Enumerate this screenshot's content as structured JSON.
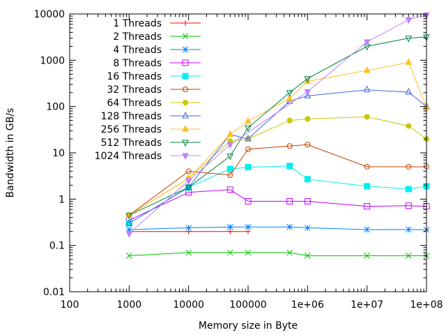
{
  "chart_data": {
    "type": "line",
    "title": "",
    "xlabel": "Memory size in Byte",
    "ylabel": "Bandwidth in GB/s",
    "x_scale": "log",
    "y_scale": "log",
    "xlim": [
      100,
      100000000
    ],
    "ylim": [
      0.01,
      10000
    ],
    "x_ticks": [
      {
        "value": 100,
        "label": "100"
      },
      {
        "value": 1000,
        "label": "1000"
      },
      {
        "value": 10000,
        "label": "10000"
      },
      {
        "value": 100000,
        "label": "100000"
      },
      {
        "value": 1000000,
        "label": "1e+06"
      },
      {
        "value": 10000000,
        "label": "1e+07"
      },
      {
        "value": 100000000,
        "label": "1e+08"
      }
    ],
    "y_ticks": [
      {
        "value": 0.01,
        "label": "0.01"
      },
      {
        "value": 0.1,
        "label": "0.1"
      },
      {
        "value": 1,
        "label": "1"
      },
      {
        "value": 10,
        "label": "10"
      },
      {
        "value": 100,
        "label": "100"
      },
      {
        "value": 1000,
        "label": "1000"
      },
      {
        "value": 10000,
        "label": "10000"
      }
    ],
    "grid": false,
    "legend_position": "top-left",
    "series": [
      {
        "name": "1 Threads",
        "color": "#ff0000",
        "marker": "plus",
        "x": [
          1000,
          10000,
          50000,
          100000
        ],
        "y": [
          0.2,
          0.2,
          0.2,
          0.2
        ]
      },
      {
        "name": "2 Threads",
        "color": "#00c000",
        "marker": "cross",
        "x": [
          1000,
          10000,
          50000,
          100000,
          500000,
          1000000,
          10000000,
          50000000,
          100000000
        ],
        "y": [
          0.06,
          0.07,
          0.07,
          0.07,
          0.07,
          0.06,
          0.06,
          0.06,
          0.06
        ]
      },
      {
        "name": "4 Threads",
        "color": "#0080ff",
        "marker": "star",
        "x": [
          1000,
          10000,
          50000,
          100000,
          500000,
          1000000,
          10000000,
          50000000,
          100000000
        ],
        "y": [
          0.22,
          0.24,
          0.25,
          0.25,
          0.25,
          0.24,
          0.22,
          0.22,
          0.22
        ]
      },
      {
        "name": "8 Threads",
        "color": "#c000ff",
        "marker": "box",
        "x": [
          1000,
          10000,
          50000,
          100000,
          500000,
          1000000,
          10000000,
          50000000,
          100000000
        ],
        "y": [
          0.35,
          1.4,
          1.6,
          0.9,
          0.9,
          0.9,
          0.7,
          0.72,
          0.7
        ]
      },
      {
        "name": "16 Threads",
        "color": "#00eeee",
        "marker": "fbox",
        "x": [
          1000,
          10000,
          50000,
          100000,
          500000,
          1000000,
          10000000,
          50000000,
          100000000
        ],
        "y": [
          0.3,
          1.8,
          4.5,
          4.9,
          5.2,
          2.7,
          1.9,
          1.65,
          1.9
        ]
      },
      {
        "name": "32 Threads",
        "color": "#c04000",
        "marker": "circle",
        "x": [
          1000,
          10000,
          50000,
          100000,
          500000,
          1000000,
          10000000,
          50000000,
          100000000
        ],
        "y": [
          0.45,
          4.0,
          3.3,
          12,
          14,
          15,
          5,
          5,
          5
        ]
      },
      {
        "name": "64 Threads",
        "color": "#c8c800",
        "marker": "fcircle",
        "x": [
          1000,
          10000,
          50000,
          100000,
          500000,
          1000000,
          10000000,
          50000000,
          100000000
        ],
        "y": [
          0.45,
          2.8,
          18,
          20,
          50,
          54,
          60,
          38,
          20
        ]
      },
      {
        "name": "128 Threads",
        "color": "#4169e1",
        "marker": "triangle",
        "x": [
          1000,
          10000,
          50000,
          100000,
          500000,
          1000000,
          10000000,
          50000000,
          100000000
        ],
        "y": [
          0.3,
          1.8,
          25,
          20,
          130,
          170,
          230,
          205,
          100
        ]
      },
      {
        "name": "256 Threads",
        "color": "#ffc020",
        "marker": "ftriangle",
        "x": [
          1000,
          10000,
          50000,
          100000,
          500000,
          1000000,
          10000000,
          50000000,
          100000000
        ],
        "y": [
          0.45,
          2.8,
          25,
          48,
          150,
          350,
          600,
          900,
          95
        ]
      },
      {
        "name": "512 Threads",
        "color": "#008040",
        "marker": "itriangle",
        "x": [
          1000,
          10000,
          50000,
          100000,
          500000,
          1000000,
          10000000,
          50000000,
          100000000
        ],
        "y": [
          0.45,
          1.8,
          8.5,
          35,
          200,
          400,
          2000,
          3000,
          3200
        ]
      },
      {
        "name": "1024 Threads",
        "color": "#c080ff",
        "marker": "fitriangle",
        "x": [
          1000,
          10000,
          50000,
          1000000,
          10000000,
          50000000,
          100000000
        ],
        "y": [
          0.18,
          2.5,
          15,
          210,
          2500,
          7500,
          9500
        ]
      }
    ]
  }
}
